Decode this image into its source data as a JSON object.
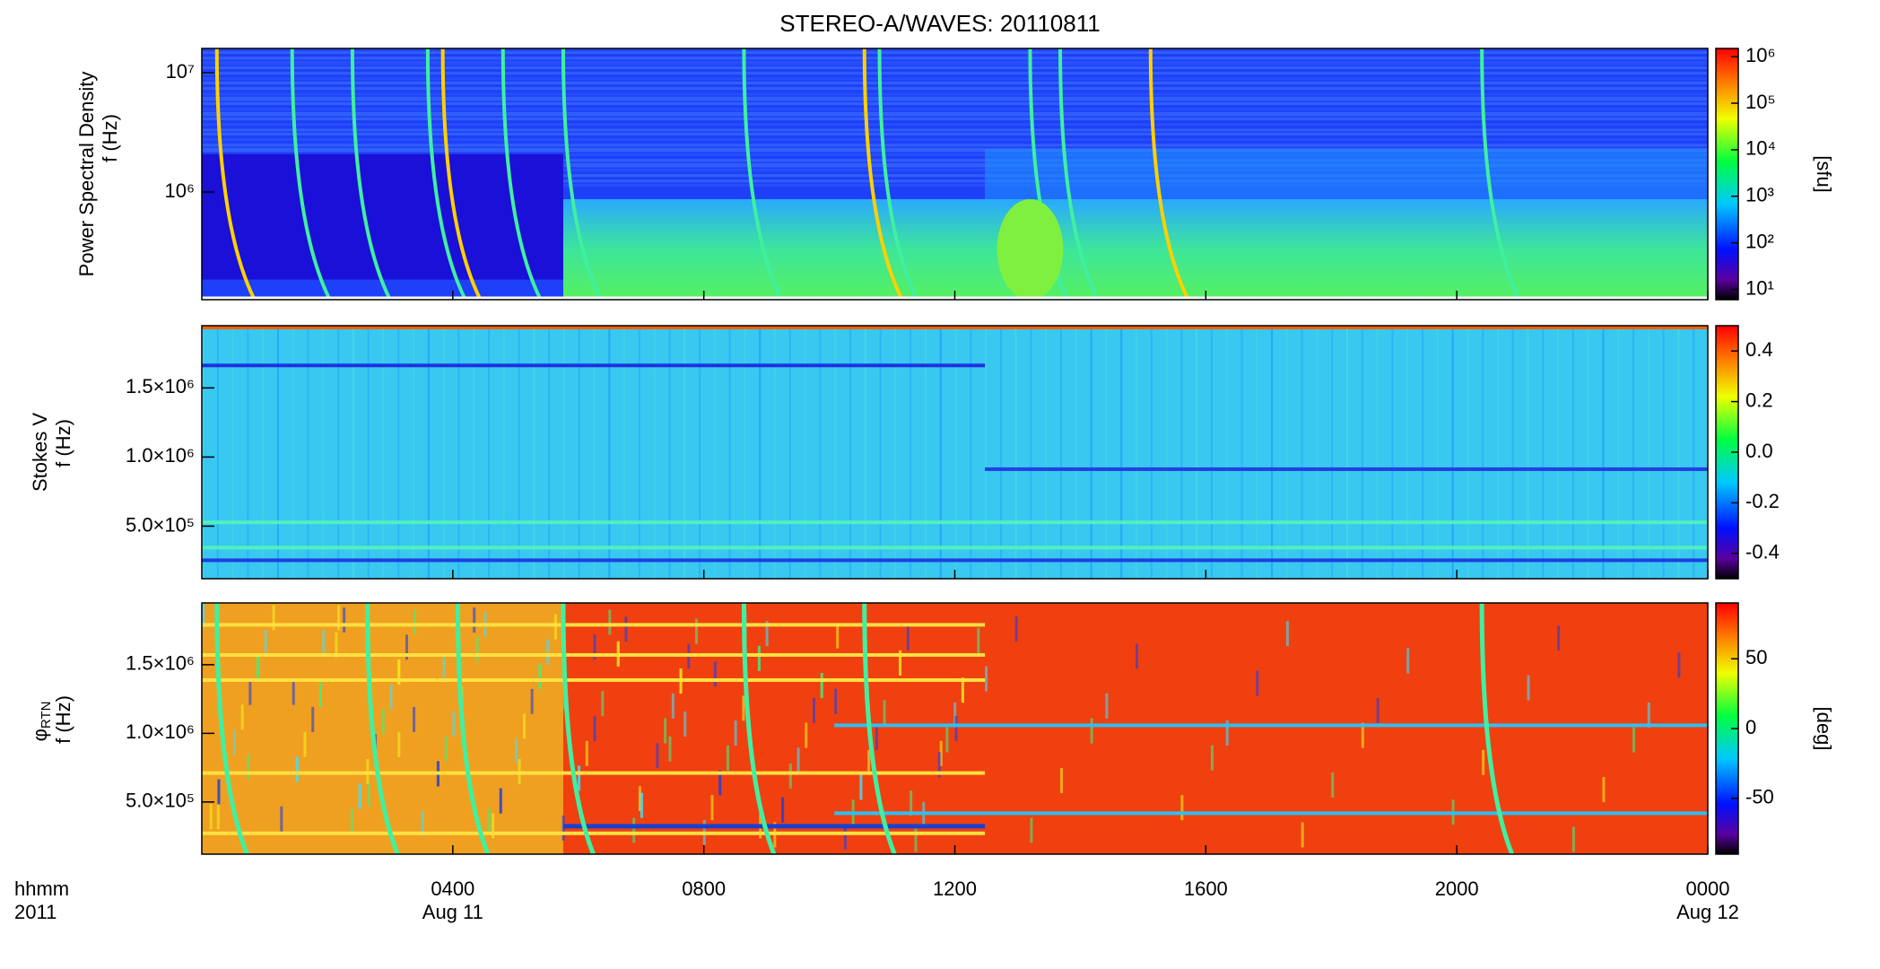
{
  "chart_data": [
    {
      "type": "spectrogram",
      "title": "STEREO-A/WAVES: 20110811",
      "name": "Power Spectral Density",
      "ylabel": "f (Hz)",
      "ylog": true,
      "ylim": [
        125000,
        16000000
      ],
      "yticks": [
        {
          "value": 1000000,
          "label": "10⁶"
        },
        {
          "value": 10000000,
          "label": "10⁷"
        }
      ],
      "xlim": [
        0,
        24
      ],
      "xticks": [
        4,
        8,
        12,
        16,
        20,
        24
      ],
      "colorbar": {
        "log": true,
        "lim": [
          6,
          1500000
        ],
        "label": "[sfu]",
        "ticks": [
          {
            "value": 10,
            "label": "10¹"
          },
          {
            "value": 100,
            "label": "10²"
          },
          {
            "value": 1000,
            "label": "10³"
          },
          {
            "value": 10000,
            "label": "10⁴"
          },
          {
            "value": 100000,
            "label": "10⁵"
          },
          {
            "value": 1000000,
            "label": "10⁶"
          }
        ]
      }
    },
    {
      "type": "spectrogram",
      "name": "Stokes V",
      "ylabel": "f (Hz)",
      "ylim": [
        120000,
        1950000
      ],
      "yticks": [
        {
          "value": 500000,
          "label": "5.0×10⁵"
        },
        {
          "value": 1000000,
          "label": "1.0×10⁶"
        },
        {
          "value": 1500000,
          "label": "1.5×10⁶"
        }
      ],
      "xlim": [
        0,
        24
      ],
      "xticks": [
        4,
        8,
        12,
        16,
        20,
        24
      ],
      "colorbar": {
        "log": false,
        "lim": [
          -0.5,
          0.5
        ],
        "ticks": [
          -0.4,
          -0.2,
          {
            "value": 0,
            "label": "0.0"
          },
          0.2,
          0.4
        ]
      }
    },
    {
      "type": "spectrogram",
      "name": "φ",
      "name_subscript": "RTN",
      "ylabel": "f (Hz)",
      "ylim": [
        120000,
        1950000
      ],
      "yticks": [
        {
          "value": 500000,
          "label": "5.0×10⁵"
        },
        {
          "value": 1000000,
          "label": "1.0×10⁶"
        },
        {
          "value": 1500000,
          "label": "1.5×10⁶"
        }
      ],
      "xlim": [
        0,
        24
      ],
      "xticks": [
        {
          "value": 4,
          "label": "0400"
        },
        {
          "value": 8,
          "label": "0800"
        },
        {
          "value": 12,
          "label": "1200"
        },
        {
          "value": 16,
          "label": "1600"
        },
        {
          "value": 20,
          "label": "2000"
        },
        {
          "value": 24,
          "label": "0000"
        }
      ],
      "xlabel": "hhmm",
      "year": "2011",
      "date_labels": [
        {
          "value": 4,
          "label": "Aug 11"
        },
        {
          "value": 24,
          "label": "Aug 12"
        }
      ],
      "colorbar": {
        "log": false,
        "lim": [
          -90,
          90
        ],
        "label": "[deg]",
        "ticks": [
          -50,
          0,
          50
        ]
      }
    }
  ]
}
